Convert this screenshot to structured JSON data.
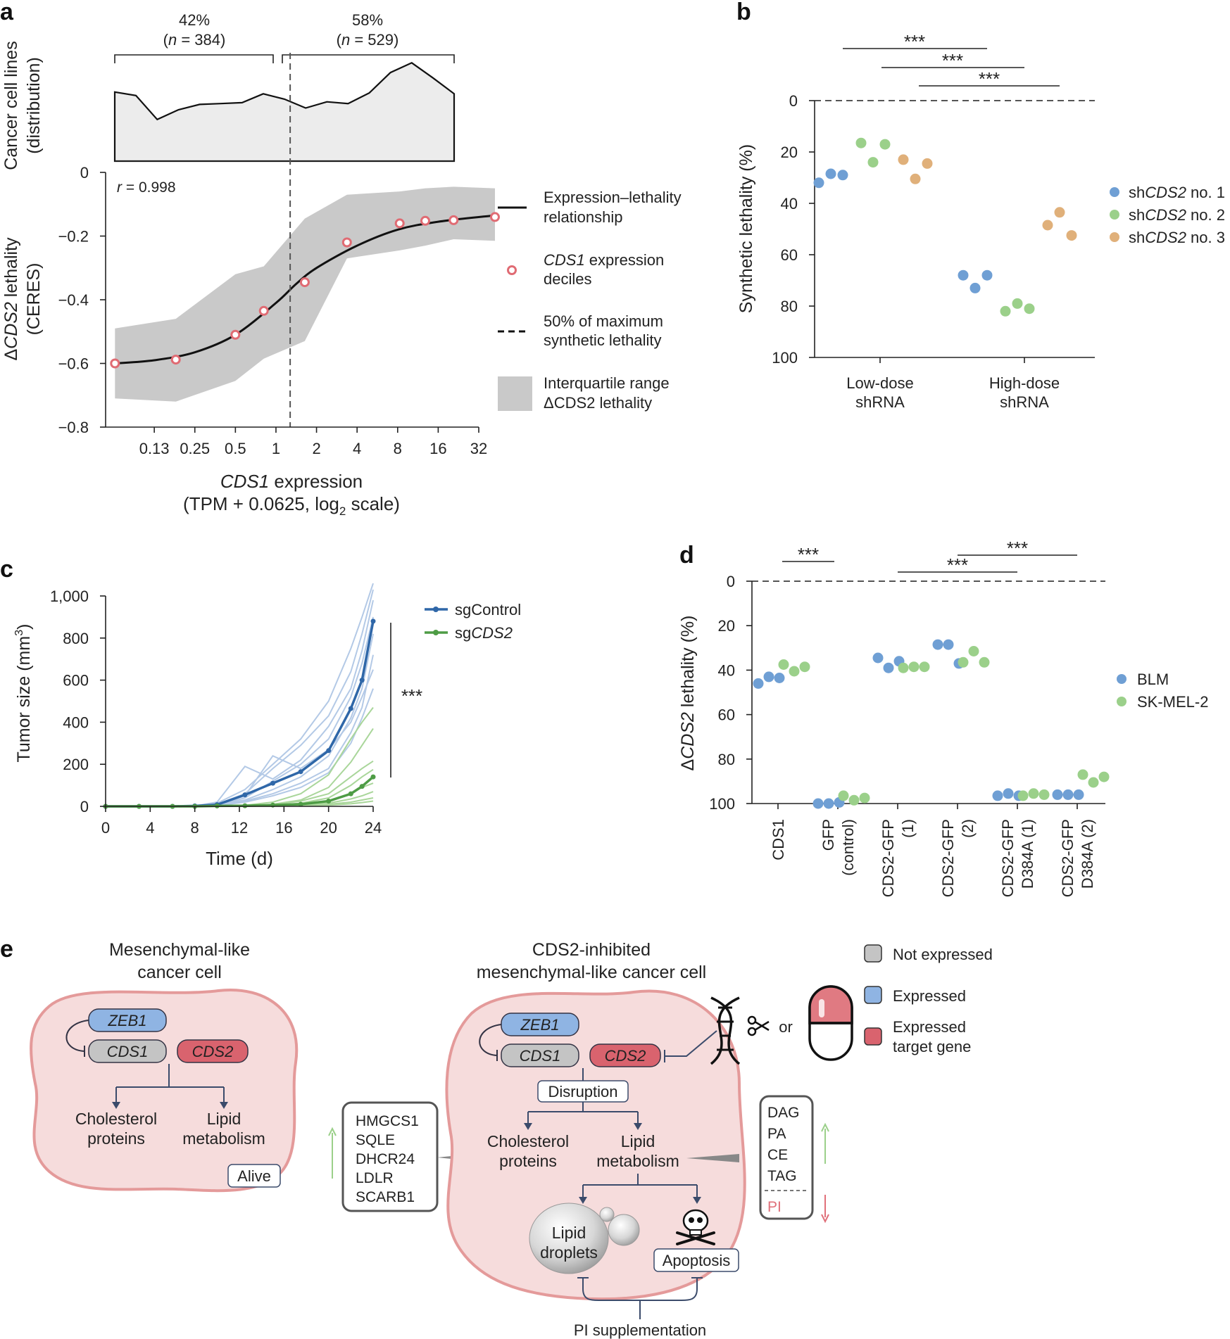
{
  "colors": {
    "blue": "#6f9fd4",
    "green": "#9bd08a",
    "orange": "#e0b07a",
    "dark_blue": "#2f67a8",
    "dark_green": "#4e9c45",
    "light_blue": "#b3c9e6",
    "light_green": "#a9d69a",
    "iqr": "#c9c9c9",
    "pink_cell": "#f6dcdc",
    "pink_border": "#e49a9a",
    "red_box": "#d9636e",
    "grey_box": "#c4c4c4",
    "blue_box": "#8fb4e3"
  },
  "panels": {
    "a": "a",
    "b": "b",
    "c": "c",
    "d": "d",
    "e": "e"
  },
  "chart_data": [
    {
      "id": "a_top",
      "type": "area",
      "ylabel": [
        "Cancer cell lines",
        "(distribution)"
      ],
      "values": [
        0.78,
        0.74,
        0.47,
        0.58,
        0.64,
        0.65,
        0.66,
        0.76,
        0.7,
        0.6,
        0.67,
        0.65,
        0.77,
        1.0,
        1.11,
        0.94,
        0.76
      ],
      "split_labels": [
        {
          "pct": "42%",
          "n_prefix": "(",
          "n_italic": "n",
          "n_suffix": " = 384)"
        },
        {
          "pct": "58%",
          "n_prefix": "(",
          "n_italic": "n",
          "n_suffix": " = 529)"
        }
      ]
    },
    {
      "id": "a_main",
      "type": "line",
      "annotation": "= 0.998",
      "annotation_italic": "r",
      "xlabel_italic": "CDS1",
      "xlabel_rest": " expression",
      "xlabel2": "(TPM + 0.0625, log",
      "xlabel2_sub": "2",
      "xlabel2_end": " scale)",
      "ylabel_prefix": "Δ",
      "ylabel_italic": "CDS2",
      "ylabel_rest": " lethality",
      "ylabel2": "(CERES)",
      "x_ticks": [
        "0.13",
        "0.25",
        "0.5",
        "1",
        "2",
        "4",
        "8",
        "16",
        "32"
      ],
      "x_tick_log2": [
        -3,
        -2,
        -1,
        0,
        1,
        2,
        3,
        4,
        5
      ],
      "xlim_log2": [
        -4.2,
        5.0
      ],
      "ylim": [
        -0.8,
        0
      ],
      "y_ticks": [
        0,
        -0.2,
        -0.4,
        -0.6,
        -0.8
      ],
      "y_tick_labels": [
        "0",
        "−0.2",
        "−0.4",
        "−0.6",
        "−0.8"
      ],
      "split_log2": 0.35,
      "deciles": [
        [
          -3.97,
          -0.6
        ],
        [
          -2.47,
          -0.588
        ],
        [
          -1.0,
          -0.51
        ],
        [
          -0.3,
          -0.435
        ],
        [
          0.71,
          -0.345
        ],
        [
          1.75,
          -0.22
        ],
        [
          3.05,
          -0.16
        ],
        [
          3.68,
          -0.152
        ],
        [
          4.38,
          -0.15
        ],
        [
          5.4,
          -0.14
        ]
      ],
      "fit": [
        [
          -3.97,
          -0.6
        ],
        [
          -3.0,
          -0.59
        ],
        [
          -2.0,
          -0.565
        ],
        [
          -1.0,
          -0.51
        ],
        [
          0.0,
          -0.41
        ],
        [
          0.5,
          -0.35
        ],
        [
          1.0,
          -0.3
        ],
        [
          2.0,
          -0.23
        ],
        [
          3.0,
          -0.18
        ],
        [
          4.0,
          -0.155
        ],
        [
          5.4,
          -0.135
        ]
      ],
      "iqr_upper": [
        [
          -3.97,
          -0.49
        ],
        [
          -2.47,
          -0.46
        ],
        [
          -1.0,
          -0.32
        ],
        [
          -0.3,
          -0.295
        ],
        [
          0.71,
          -0.145
        ],
        [
          1.75,
          -0.07
        ],
        [
          3.05,
          -0.06
        ],
        [
          3.68,
          -0.05
        ],
        [
          4.38,
          -0.045
        ],
        [
          5.4,
          -0.05
        ]
      ],
      "iqr_lower": [
        [
          -3.97,
          -0.71
        ],
        [
          -2.47,
          -0.72
        ],
        [
          -1.0,
          -0.655
        ],
        [
          -0.3,
          -0.585
        ],
        [
          0.71,
          -0.53
        ],
        [
          1.75,
          -0.27
        ],
        [
          3.05,
          -0.245
        ],
        [
          3.68,
          -0.23
        ],
        [
          4.38,
          -0.21
        ],
        [
          5.4,
          -0.215
        ]
      ],
      "legend": [
        {
          "symbol": "line",
          "lines": [
            "Expression–lethality",
            "relationship"
          ]
        },
        {
          "symbol": "circle",
          "italic_first": "CDS1",
          "lines": [
            " expression",
            "deciles"
          ]
        },
        {
          "symbol": "dashed",
          "lines": [
            "50% of maximum",
            "synthetic lethality"
          ]
        },
        {
          "symbol": "box",
          "lines": [
            "Interquartile range",
            "ΔCDS2 lethality"
          ]
        }
      ]
    },
    {
      "id": "b",
      "type": "scatter",
      "ylabel": "Synthetic lethality (%)",
      "ylim": [
        0,
        100
      ],
      "y_ticks": [
        0,
        20,
        40,
        60,
        80,
        100
      ],
      "categories": [
        [
          "Low-dose",
          "shRNA"
        ],
        [
          "High-dose",
          "shRNA"
        ]
      ],
      "series": [
        {
          "name_prefix": "sh",
          "name_italic": "CDS2",
          "name_suffix": " no. 1",
          "color": "blue",
          "points": [
            [
              0,
              -1,
              32
            ],
            [
              0,
              -1,
              28.5
            ],
            [
              0,
              -1,
              29
            ]
          ]
        },
        {
          "name_prefix": "sh",
          "name_italic": "CDS2",
          "name_suffix": " no. 2",
          "color": "green",
          "points": [
            [
              0,
              0,
              16.5
            ],
            [
              0,
              0,
              24
            ],
            [
              0,
              0,
              17
            ]
          ]
        },
        {
          "name_prefix": "sh",
          "name_italic": "CDS2",
          "name_suffix": " no. 3",
          "color": "orange",
          "points": [
            [
              0,
              1,
              23
            ],
            [
              0,
              1,
              30.5
            ],
            [
              0,
              1,
              24.5
            ]
          ]
        }
      ],
      "high_points": [
        {
          "color": "blue",
          "values": [
            68,
            73,
            68
          ]
        },
        {
          "color": "green",
          "values": [
            82,
            79,
            81
          ]
        },
        {
          "color": "orange",
          "values": [
            48.5,
            43.5,
            52.5
          ]
        }
      ],
      "significance": [
        "***",
        "***",
        "***"
      ]
    },
    {
      "id": "c",
      "type": "line",
      "xlabel": "Time (d)",
      "ylabel_main": "Tumor size (mm",
      "ylabel_sup": "3",
      "ylabel_end": ")",
      "x_ticks": [
        0,
        4,
        8,
        12,
        16,
        20,
        24
      ],
      "y_ticks": [
        0,
        200,
        400,
        600,
        800,
        1000
      ],
      "y_tick_labels": [
        "0",
        "200",
        "400",
        "600",
        "800",
        "1,000"
      ],
      "xlim": [
        0,
        24
      ],
      "ylim": [
        0,
        1000
      ],
      "x": [
        0,
        3,
        6,
        8,
        10,
        12.5,
        15,
        17.5,
        20,
        22,
        23,
        24
      ],
      "series": [
        {
          "name": "sgControl",
          "color": "dark_blue",
          "values": [
            0,
            0,
            0,
            2,
            8,
            55,
            110,
            165,
            265,
            465,
            600,
            880
          ]
        },
        {
          "name_prefix": "sg",
          "name_italic": "CDS2",
          "color": "dark_green",
          "values": [
            0,
            0,
            0,
            0,
            2,
            3,
            6,
            10,
            25,
            60,
            95,
            140
          ]
        }
      ],
      "individual_control": [
        [
          0,
          0,
          0,
          2,
          15,
          80,
          200,
          320,
          500,
          750,
          900,
          1060
        ],
        [
          0,
          0,
          0,
          1,
          10,
          60,
          180,
          290,
          430,
          640,
          820,
          1030
        ],
        [
          0,
          0,
          0,
          2,
          20,
          190,
          130,
          220,
          380,
          560,
          740,
          980
        ],
        [
          0,
          0,
          0,
          1,
          5,
          40,
          120,
          200,
          320,
          520,
          680,
          900
        ],
        [
          0,
          0,
          0,
          2,
          8,
          30,
          80,
          140,
          240,
          420,
          560,
          820
        ],
        [
          0,
          0,
          0,
          1,
          4,
          25,
          60,
          110,
          180,
          350,
          470,
          720
        ],
        [
          0,
          0,
          0,
          2,
          6,
          50,
          240,
          180,
          270,
          400,
          520,
          650
        ],
        [
          0,
          0,
          0,
          1,
          3,
          20,
          50,
          90,
          160,
          300,
          420,
          560
        ]
      ],
      "individual_cds2": [
        [
          0,
          0,
          0,
          0,
          2,
          5,
          20,
          60,
          150,
          320,
          400,
          470
        ],
        [
          0,
          0,
          0,
          0,
          1,
          3,
          10,
          30,
          90,
          210,
          290,
          370
        ],
        [
          0,
          0,
          0,
          0,
          1,
          2,
          8,
          25,
          60,
          140,
          180,
          215
        ],
        [
          0,
          0,
          0,
          0,
          0,
          2,
          5,
          15,
          40,
          100,
          140,
          175
        ],
        [
          0,
          0,
          0,
          0,
          0,
          1,
          4,
          10,
          25,
          60,
          90,
          110
        ],
        [
          0,
          0,
          0,
          0,
          0,
          1,
          3,
          8,
          15,
          35,
          50,
          70
        ],
        [
          0,
          0,
          0,
          0,
          0,
          1,
          2,
          5,
          10,
          20,
          30,
          40
        ],
        [
          0,
          0,
          0,
          0,
          0,
          0,
          1,
          3,
          6,
          12,
          18,
          25
        ]
      ],
      "significance": "***"
    },
    {
      "id": "d",
      "type": "scatter",
      "ylabel_prefix": "Δ",
      "ylabel_italic": "CDS2",
      "ylabel_rest": " lethality (%)",
      "ylim": [
        0,
        100
      ],
      "y_ticks": [
        0,
        20,
        40,
        60,
        80,
        100
      ],
      "categories": [
        [
          "CDS1"
        ],
        [
          "GFP",
          "(control)"
        ],
        [
          "CDS2-GFP",
          "(1)"
        ],
        [
          "CDS2-GFP",
          "(2)"
        ],
        [
          "CDS2-GFP",
          "D384A (1)"
        ],
        [
          "CDS2-GFP",
          "D384A (2)"
        ]
      ],
      "series": [
        {
          "name": "BLM",
          "color": "blue",
          "values": [
            [
              46,
              43,
              43.5
            ],
            [
              100,
              100,
              99.5
            ],
            [
              34.5,
              39,
              36
            ],
            [
              28.5,
              28.5,
              37
            ],
            [
              96.5,
              95.5,
              96.5
            ],
            [
              96,
              96,
              96
            ]
          ]
        },
        {
          "name": "SK-MEL-2",
          "color": "green",
          "values": [
            [
              37.5,
              40.5,
              38.5
            ],
            [
              96.5,
              98.5,
              97.5
            ],
            [
              39,
              38.5,
              38.5
            ],
            [
              36.5,
              31.5,
              36.5
            ],
            [
              96.5,
              95.5,
              96
            ],
            [
              87,
              90.5,
              88
            ]
          ]
        }
      ],
      "significance": [
        "***",
        "***",
        "***"
      ]
    }
  ],
  "diagram": {
    "legend": {
      "not_expressed": "Not expressed",
      "expressed": "Expressed",
      "target_line1": "Expressed",
      "target_line2": "target gene"
    },
    "left_cell": {
      "title1": "Mesenchymal-like",
      "title2": "cancer cell",
      "zeb1": "ZEB1",
      "cds1": "CDS1",
      "cds2": "CDS2",
      "chol1": "Cholesterol",
      "chol2": "proteins",
      "lipid1": "Lipid",
      "lipid2": "metabolism",
      "alive": "Alive"
    },
    "right_cell": {
      "title1": "CDS2-inhibited",
      "title2": "mesenchymal-like cancer cell",
      "zeb1": "ZEB1",
      "cds1": "CDS1",
      "cds2": "CDS2",
      "disruption": "Disruption",
      "chol1": "Cholesterol",
      "chol2": "proteins",
      "lipid1": "Lipid",
      "lipid2": "metabolism",
      "drops1": "Lipid",
      "drops2": "droplets",
      "apoptosis": "Apoptosis",
      "pi_supp": "PI supplementation",
      "or": "or"
    },
    "genes": [
      "HMGCS1",
      "SQLE",
      "DHCR24",
      "LDLR",
      "SCARB1"
    ],
    "lipids_up": [
      "DAG",
      "PA",
      "CE",
      "TAG"
    ],
    "lipid_down": "PI"
  }
}
